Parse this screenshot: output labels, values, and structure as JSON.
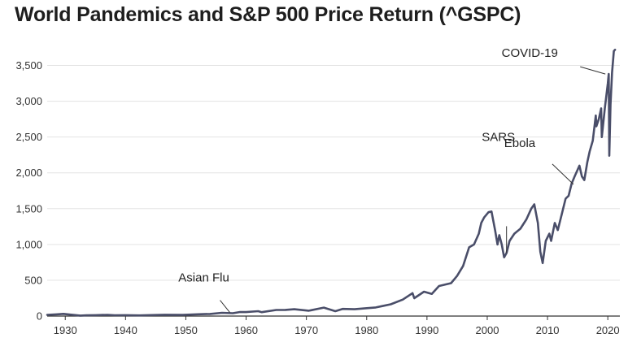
{
  "chart_data": {
    "type": "line",
    "title": "World Pandemics and S&P 500 Price Return (^GSPC)",
    "xlabel": "",
    "ylabel": "",
    "xlim": [
      1927,
      2022
    ],
    "ylim": [
      0,
      3700
    ],
    "x_ticks": [
      1930,
      1940,
      1950,
      1960,
      1970,
      1980,
      1990,
      2000,
      2010,
      2020
    ],
    "y_ticks": [
      0,
      500,
      1000,
      1500,
      2000,
      2500,
      3000,
      3500
    ],
    "y_tick_labels": [
      "0",
      "500",
      "1,000",
      "1,500",
      "2,000",
      "2,500",
      "3,000",
      "3,500"
    ],
    "grid": true,
    "colors": {
      "line": "#4a4e69",
      "grid": "#e3e3e3",
      "axis": "#333333"
    },
    "series": [
      {
        "name": "S&P 500",
        "x": [
          1927.0,
          1928.5,
          1929.7,
          1930.8,
          1932.5,
          1933.5,
          1935.0,
          1937.0,
          1938.2,
          1940.0,
          1942.3,
          1945.0,
          1946.5,
          1949.5,
          1952.0,
          1954.0,
          1956.0,
          1957.8,
          1959.0,
          1960.0,
          1962.0,
          1962.6,
          1965.0,
          1966.5,
          1968.0,
          1970.4,
          1972.9,
          1974.8,
          1976.0,
          1978.0,
          1980.0,
          1981.5,
          1982.6,
          1984.0,
          1986.0,
          1987.6,
          1987.9,
          1989.5,
          1990.8,
          1992.0,
          1994.0,
          1995.0,
          1996.0,
          1997.0,
          1997.8,
          1998.6,
          1999.0,
          1999.5,
          2000.2,
          2000.7,
          2001.3,
          2001.7,
          2002.0,
          2002.4,
          2002.8,
          2003.2,
          2003.7,
          2004.5,
          2005.5,
          2006.5,
          2007.3,
          2007.8,
          2008.4,
          2008.8,
          2009.2,
          2009.7,
          2010.3,
          2010.6,
          2011.2,
          2011.7,
          2012.3,
          2013.0,
          2013.5,
          2014.0,
          2014.5,
          2015.3,
          2015.7,
          2016.1,
          2016.6,
          2017.0,
          2017.5,
          2018.0,
          2018.1,
          2018.5,
          2018.9,
          2019.0,
          2019.5,
          2020.0,
          2020.15,
          2020.25,
          2020.45,
          2020.7,
          2021.0,
          2021.2
        ],
        "values": [
          17,
          24,
          31,
          20,
          7,
          10,
          13,
          17,
          11,
          12,
          9,
          15,
          18,
          16,
          25,
          30,
          45,
          40,
          57,
          56,
          68,
          55,
          85,
          86,
          95,
          75,
          118,
          68,
          100,
          95,
          110,
          120,
          140,
          165,
          230,
          320,
          250,
          340,
          310,
          420,
          460,
          560,
          700,
          960,
          1000,
          1150,
          1300,
          1380,
          1450,
          1460,
          1200,
          1000,
          1130,
          1000,
          820,
          880,
          1050,
          1150,
          1220,
          1350,
          1500,
          1560,
          1300,
          900,
          740,
          1050,
          1150,
          1050,
          1300,
          1200,
          1400,
          1640,
          1680,
          1850,
          1950,
          2100,
          1950,
          1900,
          2150,
          2300,
          2450,
          2800,
          2650,
          2750,
          2900,
          2500,
          2900,
          3250,
          3380,
          2240,
          2950,
          3400,
          3700,
          3720
        ]
      }
    ],
    "annotations": [
      {
        "label": "Asian Flu",
        "x": 1957.3,
        "y": 50
      },
      {
        "label": "SARS",
        "x": 2003.2,
        "y": 880
      },
      {
        "label": "Ebola",
        "x": 2014.3,
        "y": 1840
      },
      {
        "label": "COVID-19",
        "x": 2019.6,
        "y": 3380
      }
    ]
  }
}
